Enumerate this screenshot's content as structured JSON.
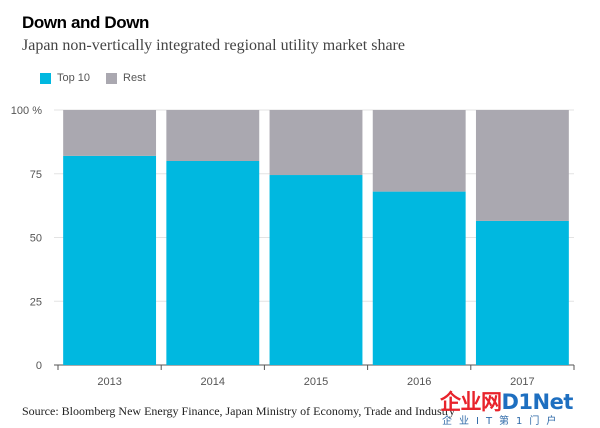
{
  "header": {
    "title": "Down and Down",
    "subtitle": "Japan non-vertically integrated regional utility market share"
  },
  "legend": {
    "items": [
      {
        "label": "Top 10",
        "color": "#00b8e0"
      },
      {
        "label": "Rest",
        "color": "#aaa8b0"
      }
    ]
  },
  "chart_data": {
    "type": "bar",
    "stacked": true,
    "categories": [
      "2013",
      "2014",
      "2015",
      "2016",
      "2017"
    ],
    "series": [
      {
        "name": "Top 10",
        "color": "#00b8e0",
        "values": [
          82,
          80,
          74.5,
          68,
          56.5
        ]
      },
      {
        "name": "Rest",
        "color": "#aaa8b0",
        "values": [
          18,
          20,
          25.5,
          32,
          43.5
        ]
      }
    ],
    "y_ticks": [
      {
        "value": 0,
        "label": "0"
      },
      {
        "value": 25,
        "label": "25"
      },
      {
        "value": 50,
        "label": "50"
      },
      {
        "value": 75,
        "label": "75"
      },
      {
        "value": 100,
        "label": "100 %"
      }
    ],
    "ylim": [
      0,
      100
    ],
    "grid": true,
    "legend_position": "top-left"
  },
  "footer": {
    "source": "Source: Bloomberg New Energy Finance, Japan Ministry of Economy, Trade and Industry"
  },
  "watermark": {
    "main_part1": "企业网",
    "main_part2": "D1Net",
    "sub": "企业IT第1门户",
    "colors": {
      "part1": "#e8232b",
      "part2": "#1e6fc0"
    }
  }
}
